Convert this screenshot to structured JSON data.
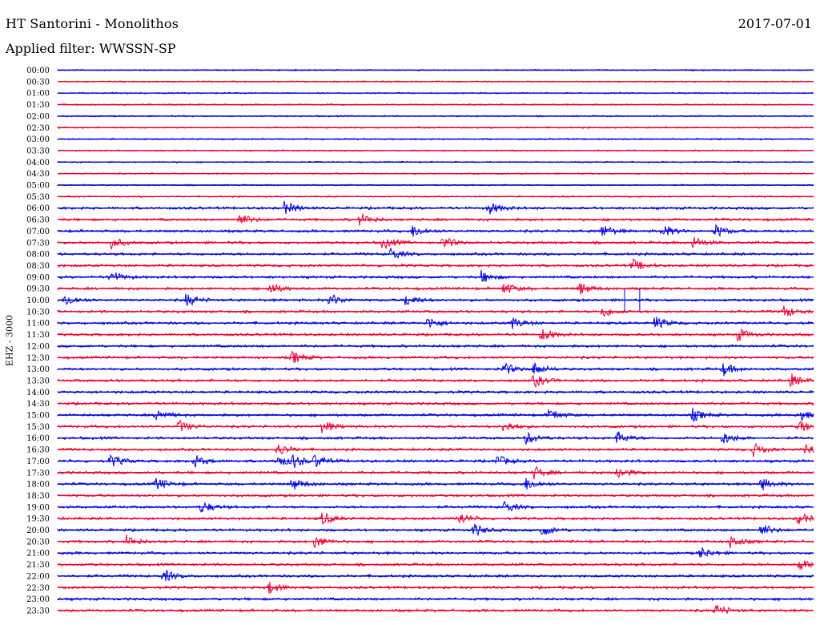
{
  "header": {
    "title": "HT Santorini - Monolithos",
    "date": "2017-07-01",
    "filter": "Applied filter: WWSSN-SP"
  },
  "chart_data": {
    "type": "line",
    "title": "HT Santorini - Monolithos",
    "ylabel": "EHZ - 3000",
    "rows": [
      "00:00",
      "00:30",
      "01:00",
      "01:30",
      "02:00",
      "02:30",
      "03:00",
      "03:30",
      "04:00",
      "04:30",
      "05:00",
      "05:30",
      "06:00",
      "06:30",
      "07:00",
      "07:30",
      "08:00",
      "08:30",
      "09:00",
      "09:30",
      "10:00",
      "10:30",
      "11:00",
      "11:30",
      "12:00",
      "12:30",
      "13:00",
      "13:30",
      "14:00",
      "14:30",
      "15:00",
      "15:30",
      "16:00",
      "16:30",
      "17:00",
      "17:30",
      "18:00",
      "18:30",
      "19:00",
      "19:30",
      "20:00",
      "20:30",
      "21:00",
      "21:30",
      "22:00",
      "22:30",
      "23:00",
      "23:30"
    ],
    "colors": [
      "#0000dd",
      "#ee0033"
    ],
    "bursts_note": "trace-only",
    "events": [
      {
        "row": "06:00",
        "t": 0.3
      },
      {
        "row": "06:00",
        "t": 0.57
      },
      {
        "row": "06:30",
        "t": 0.24
      },
      {
        "row": "06:30",
        "t": 0.4
      },
      {
        "row": "07:00",
        "t": 0.47
      },
      {
        "row": "07:00",
        "t": 0.72
      },
      {
        "row": "07:00",
        "t": 0.8
      },
      {
        "row": "07:00",
        "t": 0.87
      },
      {
        "row": "07:30",
        "t": 0.07
      },
      {
        "row": "07:30",
        "t": 0.43
      },
      {
        "row": "07:30",
        "t": 0.51
      },
      {
        "row": "07:30",
        "t": 0.84
      },
      {
        "row": "08:00",
        "t": 0.44
      },
      {
        "row": "08:30",
        "t": 0.76
      },
      {
        "row": "09:00",
        "t": 0.07
      },
      {
        "row": "09:00",
        "t": 0.56
      },
      {
        "row": "09:30",
        "t": 0.28
      },
      {
        "row": "09:30",
        "t": 0.59
      },
      {
        "row": "09:30",
        "t": 0.69
      },
      {
        "row": "10:00",
        "t": 0.01
      },
      {
        "row": "10:00",
        "t": 0.17
      },
      {
        "row": "10:00",
        "t": 0.36
      },
      {
        "row": "10:00",
        "t": 0.46
      },
      {
        "row": "10:30",
        "t": 0.72
      },
      {
        "row": "10:30",
        "t": 0.96
      },
      {
        "row": "11:00",
        "t": 0.49
      },
      {
        "row": "11:00",
        "t": 0.6
      },
      {
        "row": "11:00",
        "t": 0.79
      },
      {
        "row": "11:30",
        "t": 0.64
      },
      {
        "row": "11:30",
        "t": 0.9
      },
      {
        "row": "12:30",
        "t": 0.31
      },
      {
        "row": "13:00",
        "t": 0.59
      },
      {
        "row": "13:00",
        "t": 0.63
      },
      {
        "row": "13:00",
        "t": 0.88
      },
      {
        "row": "13:30",
        "t": 0.63
      },
      {
        "row": "13:30",
        "t": 0.97
      },
      {
        "row": "15:00",
        "t": 0.13
      },
      {
        "row": "15:00",
        "t": 0.65
      },
      {
        "row": "15:00",
        "t": 0.84
      },
      {
        "row": "15:00",
        "t": 0.98
      },
      {
        "row": "15:30",
        "t": 0.16
      },
      {
        "row": "15:30",
        "t": 0.35
      },
      {
        "row": "15:30",
        "t": 0.59
      },
      {
        "row": "15:30",
        "t": 0.98
      },
      {
        "row": "16:00",
        "t": 0.62
      },
      {
        "row": "16:00",
        "t": 0.74
      },
      {
        "row": "16:00",
        "t": 0.88
      },
      {
        "row": "16:30",
        "t": 0.29
      },
      {
        "row": "16:30",
        "t": 0.92
      },
      {
        "row": "16:30",
        "t": 0.99
      },
      {
        "row": "17:00",
        "t": 0.07
      },
      {
        "row": "17:00",
        "t": 0.18
      },
      {
        "row": "17:00",
        "t": 0.29
      },
      {
        "row": "17:00",
        "t": 0.31
      },
      {
        "row": "17:00",
        "t": 0.34
      },
      {
        "row": "17:00",
        "t": 0.58
      },
      {
        "row": "17:30",
        "t": 0.63
      },
      {
        "row": "17:30",
        "t": 0.74
      },
      {
        "row": "18:00",
        "t": 0.13
      },
      {
        "row": "18:00",
        "t": 0.31
      },
      {
        "row": "18:00",
        "t": 0.62
      },
      {
        "row": "18:00",
        "t": 0.93
      },
      {
        "row": "19:00",
        "t": 0.19
      },
      {
        "row": "19:00",
        "t": 0.59
      },
      {
        "row": "19:30",
        "t": 0.35
      },
      {
        "row": "19:30",
        "t": 0.53
      },
      {
        "row": "19:30",
        "t": 0.98
      },
      {
        "row": "20:00",
        "t": 0.55
      },
      {
        "row": "20:00",
        "t": 0.64
      },
      {
        "row": "20:00",
        "t": 0.93
      },
      {
        "row": "20:30",
        "t": 0.09
      },
      {
        "row": "20:30",
        "t": 0.34
      },
      {
        "row": "20:30",
        "t": 0.89
      },
      {
        "row": "21:00",
        "t": 0.85
      },
      {
        "row": "21:30",
        "t": 0.98
      },
      {
        "row": "22:00",
        "t": 0.14
      },
      {
        "row": "22:30",
        "t": 0.28
      },
      {
        "row": "23:30",
        "t": 0.87
      }
    ],
    "spikes": [
      {
        "row": "10:00",
        "t": 0.75
      },
      {
        "row": "10:00",
        "t": 0.77
      }
    ]
  }
}
